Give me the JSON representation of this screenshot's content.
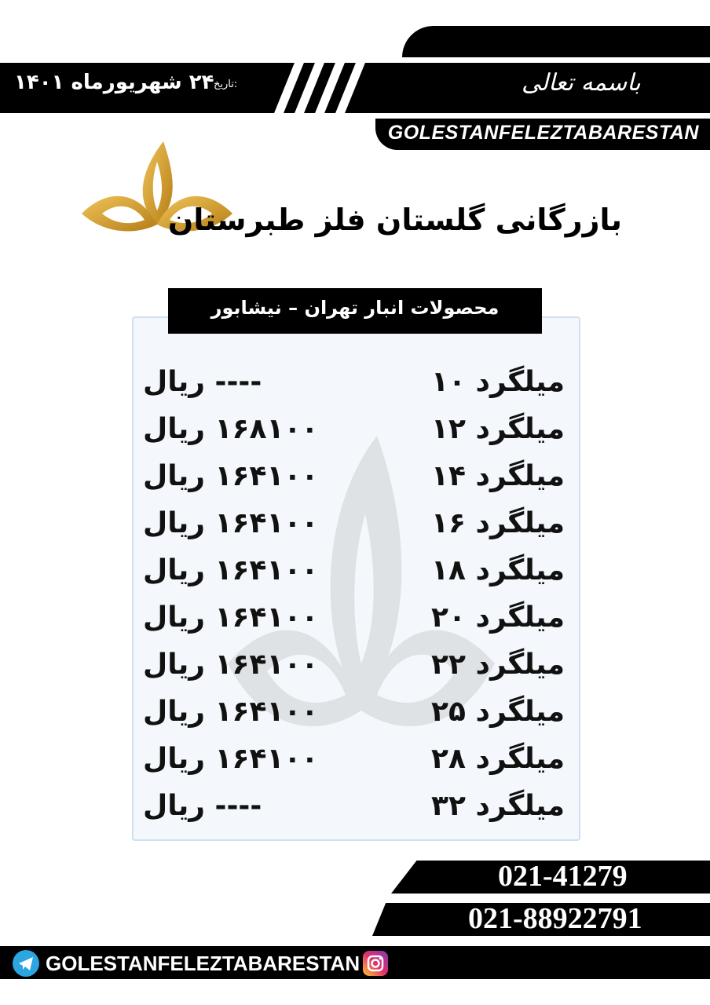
{
  "header": {
    "bismillah": "باسمه تعالی",
    "date_label": "تاریخ:",
    "date_value": "۲۴ شهریورماه ۱۴۰۱",
    "brand_latin": "GOLESTANFELEZTABARESTAN"
  },
  "company": {
    "name": "بازرگانی گلستان فلز طبرستان",
    "logo_color": "#d9a531"
  },
  "table": {
    "title": "محصولات انبار تهران – نیشابور",
    "rows": [
      {
        "product": "میلگرد ۱۰",
        "price": "---- ریال"
      },
      {
        "product": "میلگرد ۱۲",
        "price": "۱۶۸۱۰۰ ریال"
      },
      {
        "product": "میلگرد ۱۴",
        "price": "۱۶۴۱۰۰ ریال"
      },
      {
        "product": "میلگرد ۱۶",
        "price": "۱۶۴۱۰۰ ریال"
      },
      {
        "product": "میلگرد ۱۸",
        "price": "۱۶۴۱۰۰ ریال"
      },
      {
        "product": "میلگرد ۲۰",
        "price": "۱۶۴۱۰۰ ریال"
      },
      {
        "product": "میلگرد ۲۲",
        "price": "۱۶۴۱۰۰ ریال"
      },
      {
        "product": "میلگرد ۲۵",
        "price": "۱۶۴۱۰۰ ریال"
      },
      {
        "product": "میلگرد ۲۸",
        "price": "۱۶۴۱۰۰ ریال"
      },
      {
        "product": "میلگرد ۳۲",
        "price": "---- ریال"
      }
    ]
  },
  "contact": {
    "phone1": "021-41279",
    "phone2": "021-88922791",
    "social_handle": "GOLESTANFELEZTABARESTAN",
    "icons": [
      "telegram-icon",
      "instagram-icon"
    ]
  }
}
